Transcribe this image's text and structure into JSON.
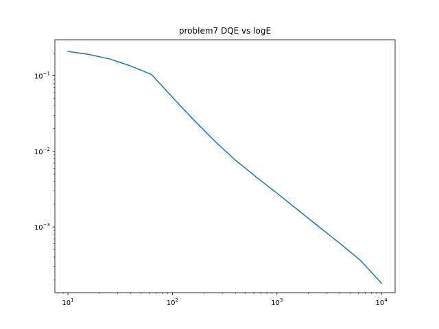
{
  "chart_data": {
    "type": "line",
    "title": "problem7 DQE vs logE",
    "xlabel": "",
    "ylabel": "",
    "x_scale": "log",
    "y_scale": "log",
    "xlim": [
      7.5,
      13500
    ],
    "ylim": [
      0.000135,
      0.3
    ],
    "grid": false,
    "line_color": "#1f77b4",
    "x_ticks": [
      {
        "value": 10,
        "base": "10",
        "exp": "1"
      },
      {
        "value": 100,
        "base": "10",
        "exp": "2"
      },
      {
        "value": 1000,
        "base": "10",
        "exp": "3"
      },
      {
        "value": 10000,
        "base": "10",
        "exp": "4"
      }
    ],
    "y_ticks": [
      {
        "value": 0.1,
        "base": "10",
        "exp": "−1"
      },
      {
        "value": 0.01,
        "base": "10",
        "exp": "−2"
      },
      {
        "value": 0.001,
        "base": "10",
        "exp": "−3"
      }
    ],
    "series": [
      {
        "x": [
          10,
          15.8,
          25.1,
          39.8,
          63.1,
          100,
          158,
          251,
          398,
          631,
          1000,
          1585,
          2512,
          3981,
          6310,
          10000
        ],
        "y": [
          0.21,
          0.192,
          0.167,
          0.135,
          0.104,
          0.052,
          0.0265,
          0.0139,
          0.0077,
          0.0046,
          0.0028,
          0.00168,
          0.00101,
          0.00061,
          0.00036,
          0.00018
        ]
      }
    ]
  }
}
